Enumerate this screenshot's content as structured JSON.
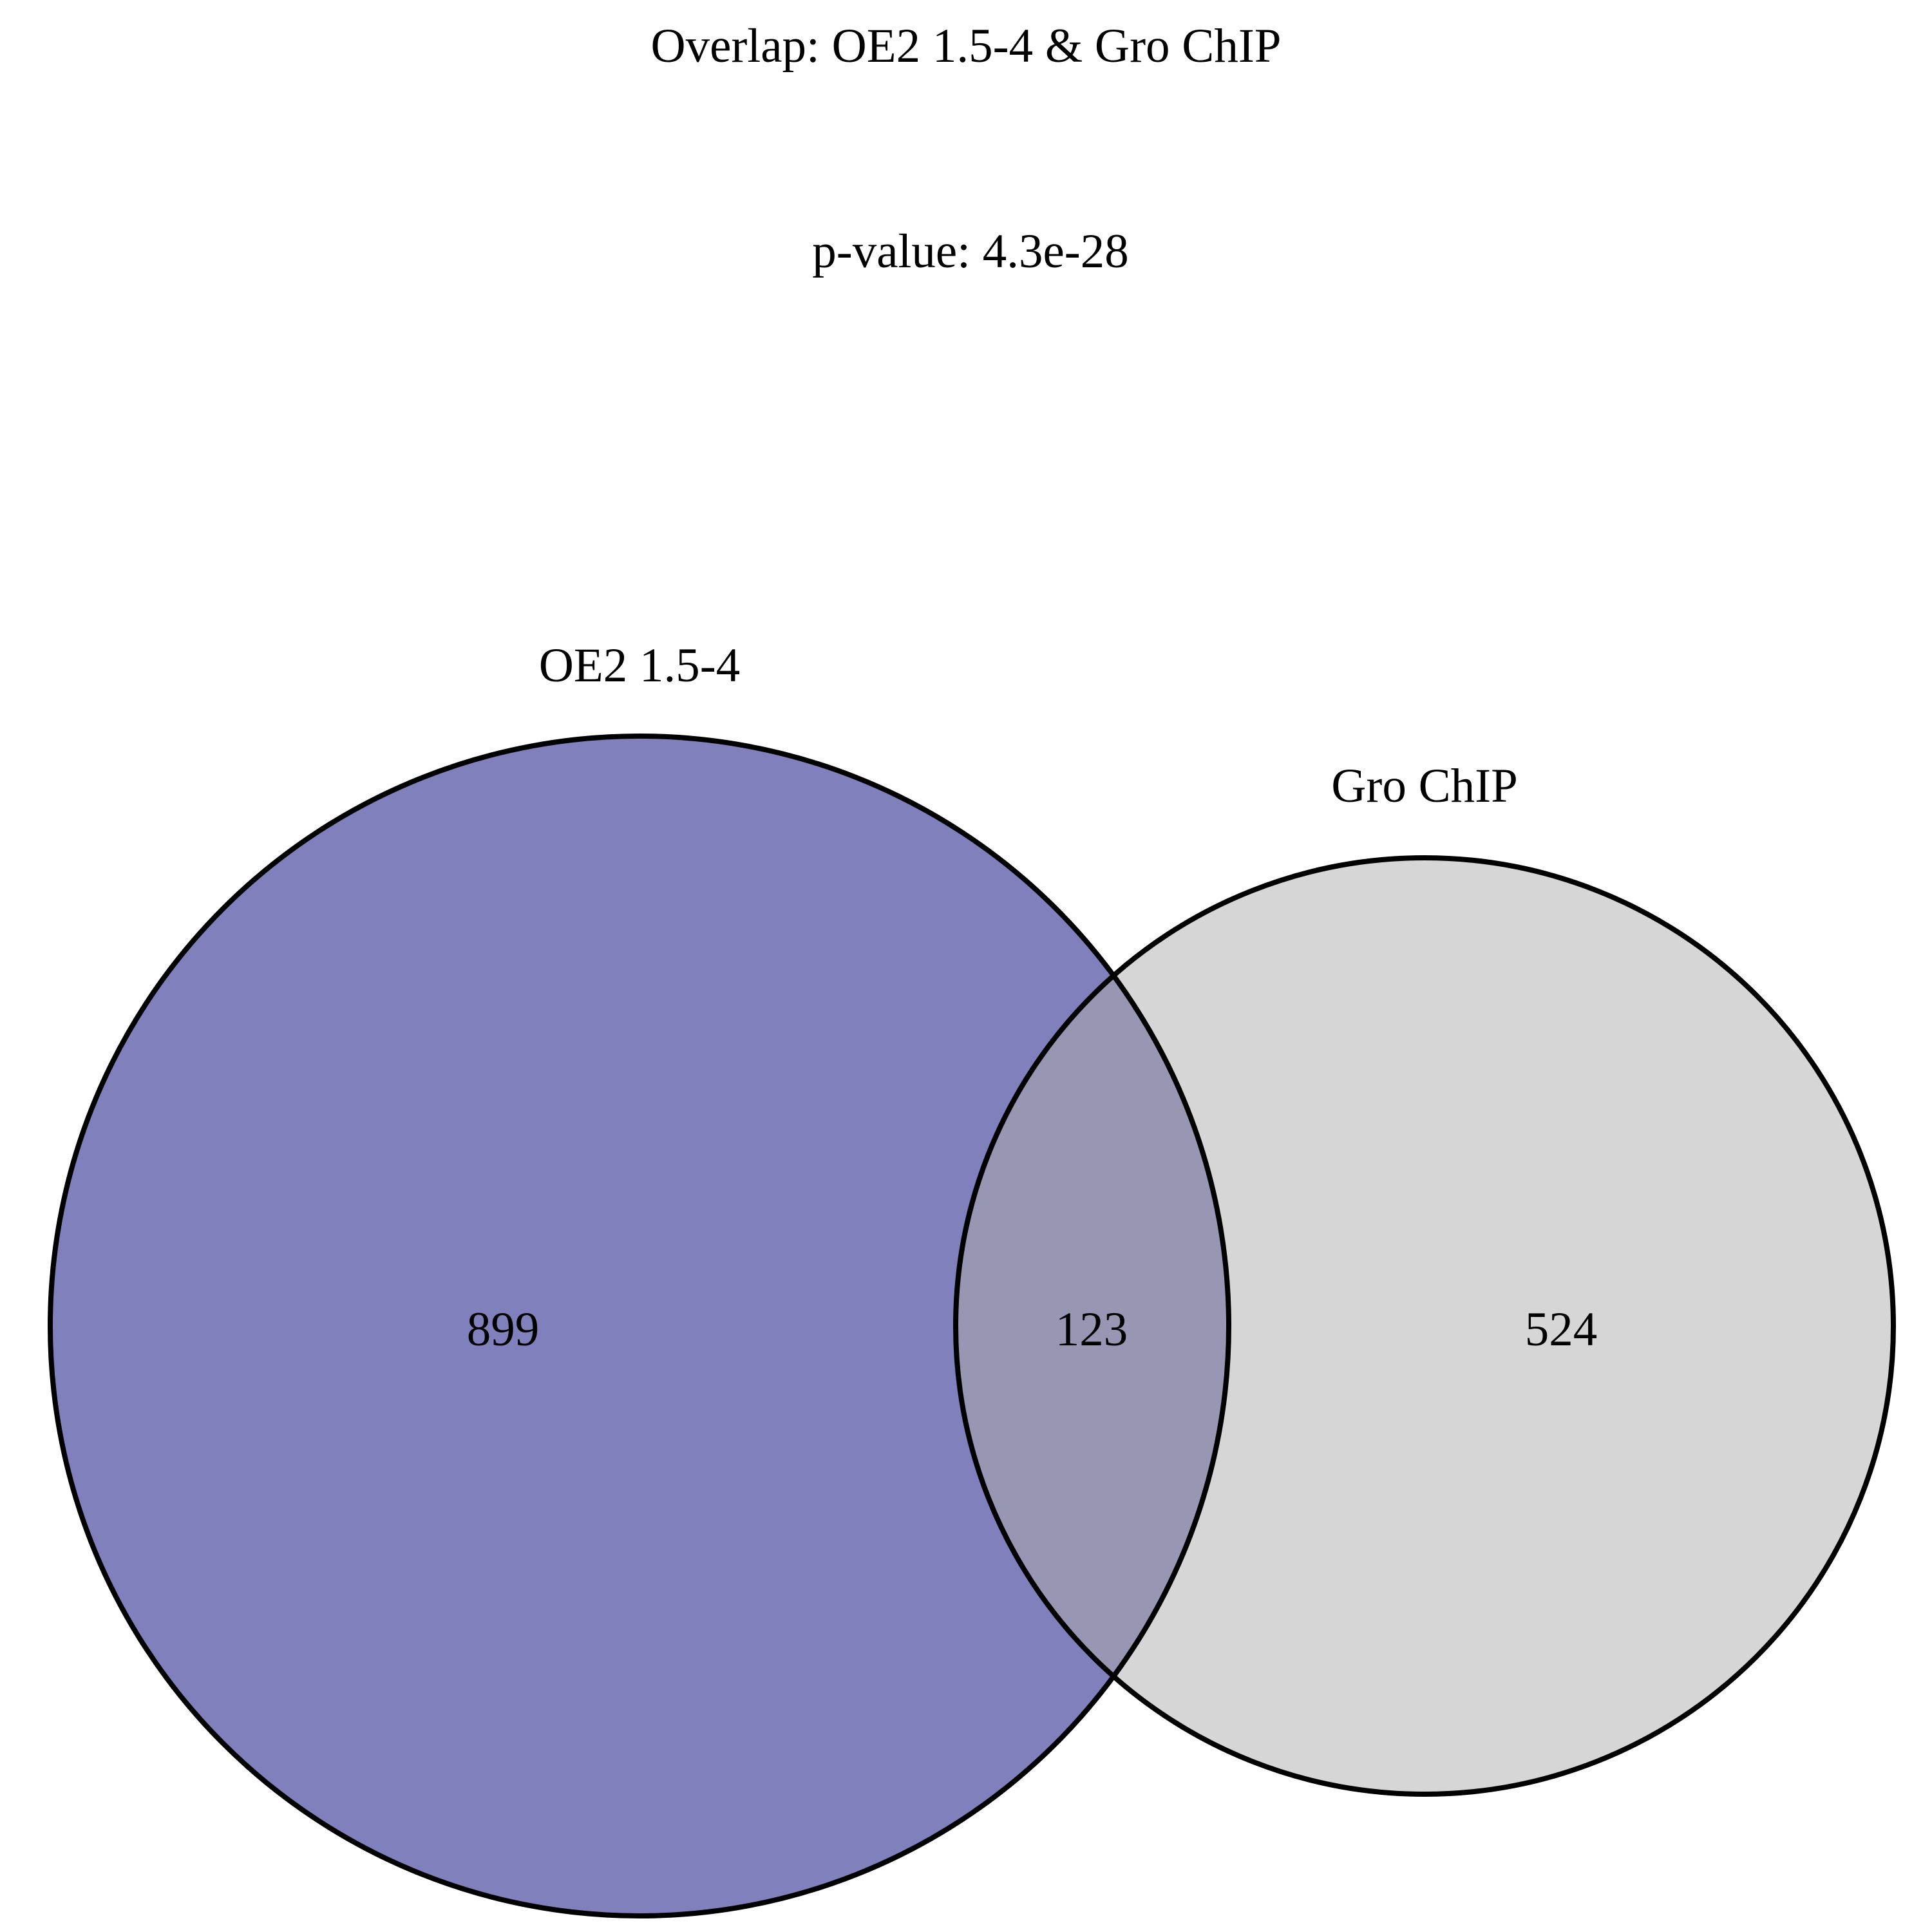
{
  "title": "Overlap: OE2 1.5-4 & Gro ChIP",
  "pvalue_text": "p-value: 4.3e-28",
  "sets": [
    {
      "name": "OE2 1.5-4",
      "only_count": "899",
      "fill": "#8080bc"
    },
    {
      "name": "Gro ChIP",
      "only_count": "524",
      "fill": "#d6d6d6"
    }
  ],
  "intersection": {
    "count": "123",
    "fill": "#9797b4"
  },
  "outline_color": "#000000"
}
